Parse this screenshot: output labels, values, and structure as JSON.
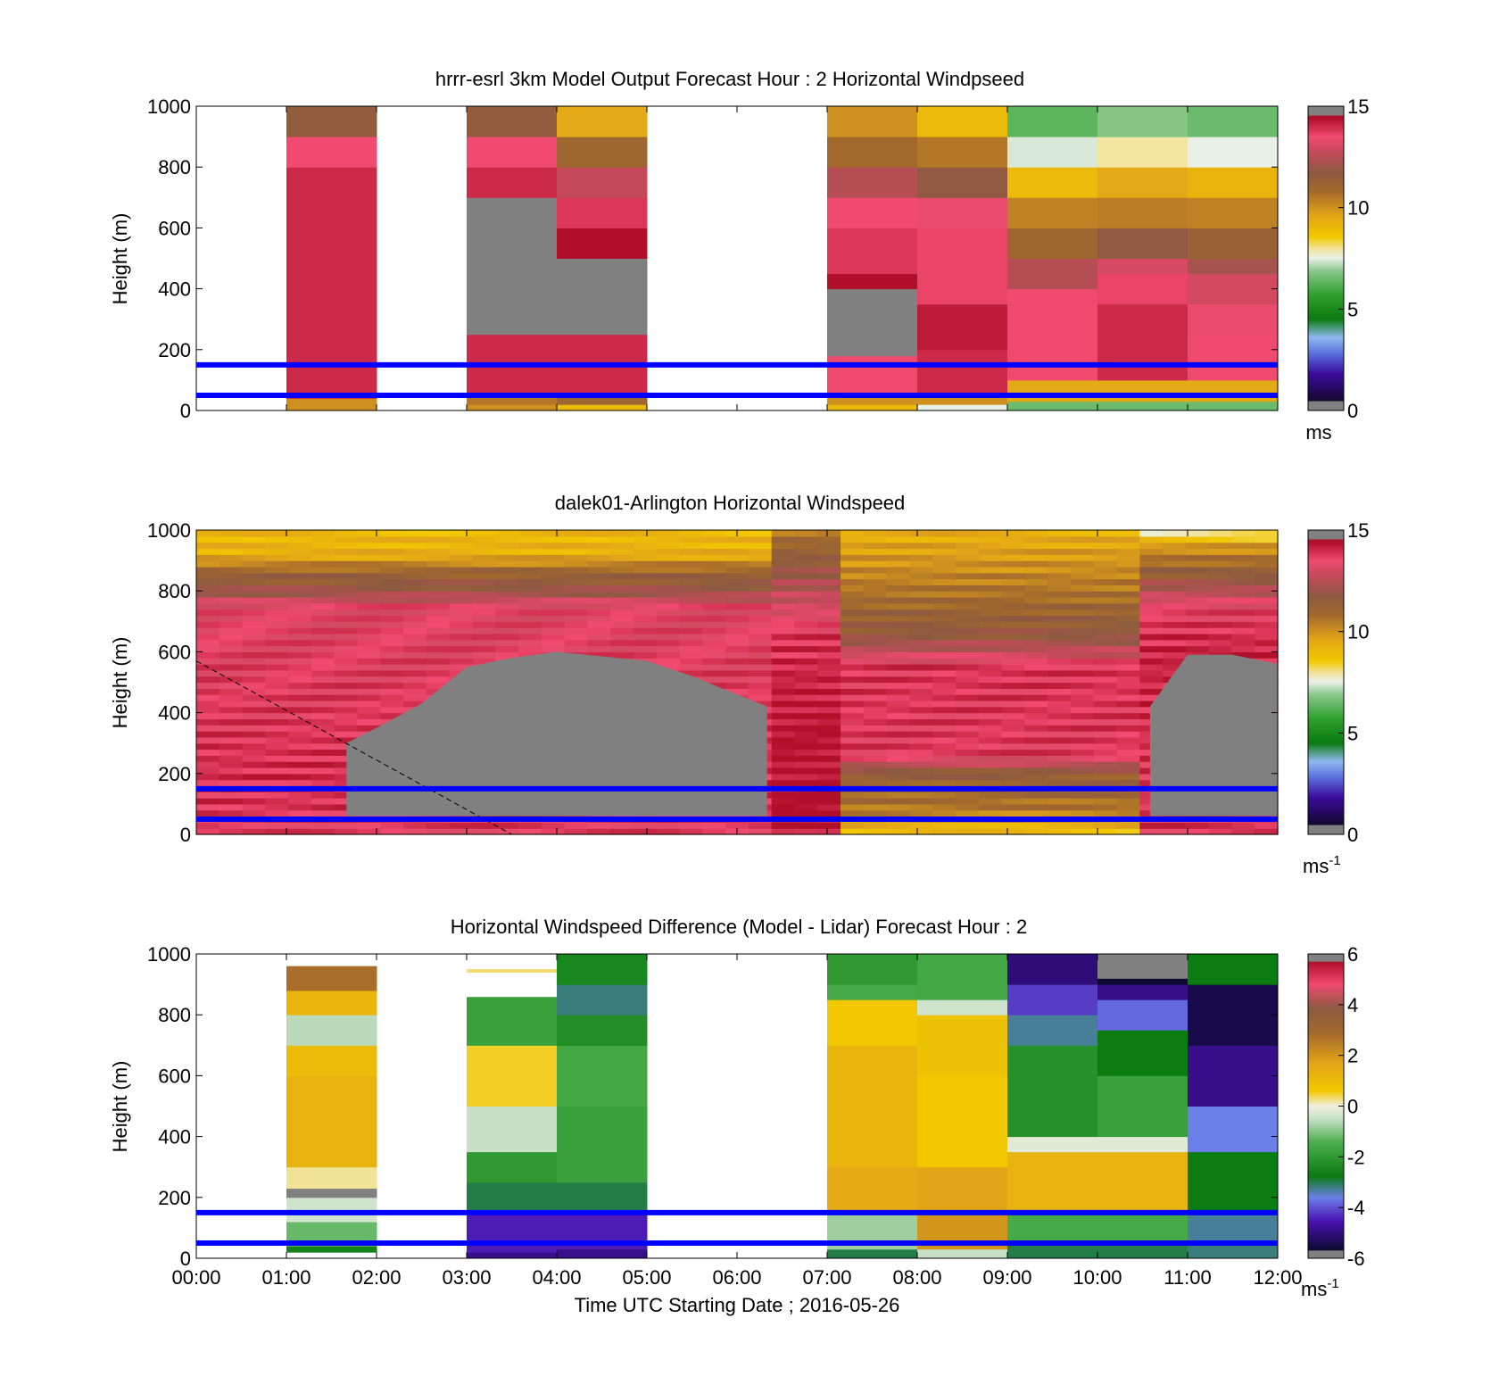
{
  "chart_data": [
    {
      "type": "heatmap",
      "title": "hrrr-esrl 3km Model Output   Forecast Hour : 2 Horizontal Windpseed",
      "ylabel": "Height (m)",
      "xlabel": "",
      "xlim": [
        "00:00",
        "12:00"
      ],
      "ylim": [
        0,
        1000
      ],
      "yticks": [
        "0",
        "200",
        "400",
        "600",
        "800",
        "1000"
      ],
      "colorbar": {
        "min": 0,
        "max": 15,
        "ticks": [
          "0",
          "5",
          "10",
          "15"
        ],
        "unit": "ms"
      },
      "reference_lines_m": [
        50,
        150
      ],
      "line_color": "#0000ff",
      "columns": [
        {
          "start": "01:00",
          "end": "02:00",
          "bands": [
            [
              0,
              20,
              10
            ],
            [
              20,
              40,
              10
            ],
            [
              40,
              180,
              14
            ],
            [
              180,
              700,
              14
            ],
            [
              700,
              800,
              14
            ],
            [
              800,
              900,
              13.5
            ],
            [
              900,
              1000,
              11.5
            ]
          ]
        },
        {
          "start": "03:00",
          "end": "04:00",
          "bands": [
            [
              0,
              20,
              10
            ],
            [
              20,
              60,
              10.5
            ],
            [
              60,
              250,
              14
            ],
            [
              250,
              700,
              0
            ],
            [
              700,
              800,
              14
            ],
            [
              800,
              900,
              13.5
            ],
            [
              900,
              1000,
              11.5
            ]
          ]
        },
        {
          "start": "04:00",
          "end": "05:00",
          "bands": [
            [
              0,
              20,
              9
            ],
            [
              20,
              60,
              11
            ],
            [
              60,
              250,
              14
            ],
            [
              250,
              500,
              0
            ],
            [
              500,
              600,
              14.5
            ],
            [
              600,
              700,
              13.8
            ],
            [
              700,
              800,
              12.8
            ],
            [
              800,
              900,
              11
            ],
            [
              900,
              1000,
              9.5
            ]
          ]
        },
        {
          "start": "07:00",
          "end": "08:00",
          "bands": [
            [
              0,
              20,
              9
            ],
            [
              20,
              60,
              10
            ],
            [
              60,
              180,
              13.5
            ],
            [
              180,
              400,
              0
            ],
            [
              400,
              450,
              14.5
            ],
            [
              450,
              600,
              13.8
            ],
            [
              600,
              700,
              13.5
            ],
            [
              700,
              800,
              12.5
            ],
            [
              800,
              900,
              10.8
            ],
            [
              900,
              1000,
              10
            ]
          ]
        },
        {
          "start": "08:00",
          "end": "09:00",
          "bands": [
            [
              0,
              20,
              7.5
            ],
            [
              20,
              60,
              10
            ],
            [
              60,
              200,
              14
            ],
            [
              200,
              350,
              14.2
            ],
            [
              350,
              600,
              13.6
            ],
            [
              600,
              700,
              13.4
            ],
            [
              700,
              800,
              11.8
            ],
            [
              800,
              900,
              10.5
            ],
            [
              900,
              1000,
              9
            ]
          ]
        },
        {
          "start": "09:00",
          "end": "10:00",
          "bands": [
            [
              0,
              30,
              6.5
            ],
            [
              30,
              100,
              9.5
            ],
            [
              100,
              250,
              13.5
            ],
            [
              250,
              400,
              13.5
            ],
            [
              400,
              500,
              12.5
            ],
            [
              500,
              600,
              11
            ],
            [
              600,
              700,
              10.3
            ],
            [
              700,
              800,
              9
            ],
            [
              800,
              900,
              7.4
            ],
            [
              900,
              1000,
              6.3
            ]
          ]
        },
        {
          "start": "10:00",
          "end": "11:00",
          "bands": [
            [
              0,
              30,
              6.5
            ],
            [
              30,
              100,
              9.5
            ],
            [
              100,
              250,
              14
            ],
            [
              250,
              350,
              14
            ],
            [
              350,
              450,
              13.6
            ],
            [
              450,
              500,
              13.1
            ],
            [
              500,
              600,
              11.8
            ],
            [
              600,
              700,
              10.4
            ],
            [
              700,
              800,
              9.5
            ],
            [
              800,
              900,
              8
            ],
            [
              900,
              1000,
              6.8
            ]
          ]
        },
        {
          "start": "11:00",
          "end": "12:00",
          "bands": [
            [
              0,
              30,
              6.5
            ],
            [
              30,
              100,
              9.5
            ],
            [
              100,
              250,
              13.5
            ],
            [
              250,
              350,
              13.4
            ],
            [
              350,
              450,
              13
            ],
            [
              450,
              500,
              12.2
            ],
            [
              500,
              600,
              11.2
            ],
            [
              600,
              700,
              10.3
            ],
            [
              700,
              800,
              9.2
            ],
            [
              800,
              900,
              7.5
            ],
            [
              900,
              1000,
              6.5
            ]
          ]
        }
      ]
    },
    {
      "type": "heatmap",
      "title": "dalek01-Arlington  Horizontal Windspeed",
      "ylabel": "Height (m)",
      "xlabel": "",
      "xlim": [
        "00:00",
        "12:00"
      ],
      "ylim": [
        0,
        1000
      ],
      "yticks": [
        "0",
        "200",
        "400",
        "600",
        "800",
        "1000"
      ],
      "colorbar": {
        "min": 0,
        "max": 15,
        "ticks": [
          "0",
          "5",
          "10",
          "15"
        ],
        "unit": "ms",
        "unit_exp": "-1"
      },
      "reference_lines_m": [
        50,
        150
      ],
      "line_color": "#0000ff",
      "data_gap_value": 0,
      "gray_region_top_m": [
        [
          "00:00",
          -1
        ],
        [
          "01:30",
          -1
        ],
        [
          "01:40",
          300
        ],
        [
          "02:00",
          350
        ],
        [
          "02:30",
          430
        ],
        [
          "03:00",
          550
        ],
        [
          "03:30",
          580
        ],
        [
          "04:00",
          600
        ],
        [
          "05:00",
          570
        ],
        [
          "05:30",
          520
        ],
        [
          "06:20",
          420
        ],
        [
          "06:25",
          -1
        ],
        [
          "10:30",
          -1
        ],
        [
          "10:35",
          420
        ],
        [
          "11:00",
          590
        ],
        [
          "11:30",
          590
        ],
        [
          "12:00",
          560
        ]
      ],
      "gray_region_bottom_m": 60,
      "dashed_line": [
        [
          "00:00",
          570
        ],
        [
          "03:30",
          0
        ]
      ]
    },
    {
      "type": "heatmap",
      "title": "Horizontal Windspeed Difference (Model - Lidar) Forecast Hour : 2",
      "ylabel": "Height (m)",
      "xlabel": "Time UTC  Starting Date ; 2016-05-26",
      "xlim": [
        "00:00",
        "12:00"
      ],
      "ylim": [
        0,
        1000
      ],
      "xticks": [
        "00:00",
        "01:00",
        "02:00",
        "03:00",
        "04:00",
        "05:00",
        "06:00",
        "07:00",
        "08:00",
        "09:00",
        "10:00",
        "11:00",
        "12:00"
      ],
      "yticks": [
        "0",
        "200",
        "400",
        "600",
        "800",
        "1000"
      ],
      "colorbar": {
        "min": -6,
        "max": 6,
        "ticks": [
          "-6",
          "-4",
          "-2",
          "0",
          "2",
          "4",
          "6"
        ],
        "unit": "ms",
        "unit_exp": "-1"
      },
      "reference_lines_m": [
        50,
        150
      ],
      "line_color": "#0000ff",
      "columns": [
        {
          "start": "01:00",
          "end": "02:00",
          "bands": [
            [
              20,
              40,
              -2.6
            ],
            [
              40,
              120,
              -1.2
            ],
            [
              120,
              200,
              -0.4
            ],
            [
              200,
              230,
              "gap"
            ],
            [
              230,
              300,
              0.2
            ],
            [
              300,
              600,
              1.3
            ],
            [
              600,
              700,
              1
            ],
            [
              700,
              800,
              -0.6
            ],
            [
              800,
              880,
              1.2
            ],
            [
              880,
              960,
              2.8
            ]
          ]
        },
        {
          "start": "03:00",
          "end": "04:00",
          "bands": [
            [
              0,
              20,
              -5
            ],
            [
              20,
              150,
              -4.5
            ],
            [
              150,
              250,
              -3
            ],
            [
              250,
              350,
              -2
            ],
            [
              350,
              500,
              -0.5
            ],
            [
              500,
              700,
              0.5
            ],
            [
              700,
              860,
              -1.8
            ],
            [
              860,
              940,
              "empty"
            ],
            [
              940,
              950,
              0.3
            ]
          ]
        },
        {
          "start": "04:00",
          "end": "05:00",
          "bands": [
            [
              0,
              30,
              -5
            ],
            [
              30,
              150,
              -4.5
            ],
            [
              150,
              250,
              -3
            ],
            [
              250,
              500,
              -1.8
            ],
            [
              500,
              700,
              -1.6
            ],
            [
              700,
              800,
              -2.3
            ],
            [
              800,
              900,
              -3.2
            ],
            [
              900,
              1000,
              -2.5
            ]
          ]
        },
        {
          "start": "07:00",
          "end": "08:00",
          "bands": [
            [
              0,
              30,
              -3
            ],
            [
              30,
              150,
              -0.8
            ],
            [
              150,
              300,
              1.5
            ],
            [
              300,
              700,
              1.2
            ],
            [
              700,
              850,
              0.6
            ],
            [
              850,
              900,
              -1.5
            ],
            [
              900,
              1000,
              -2
            ]
          ]
        },
        {
          "start": "08:00",
          "end": "09:00",
          "bands": [
            [
              0,
              30,
              -0.5
            ],
            [
              30,
              150,
              2
            ],
            [
              150,
              300,
              1.7
            ],
            [
              300,
              600,
              0.6
            ],
            [
              600,
              800,
              0.8
            ],
            [
              800,
              850,
              -0.4
            ],
            [
              850,
              1000,
              -1.6
            ]
          ]
        },
        {
          "start": "09:00",
          "end": "10:00",
          "bands": [
            [
              0,
              50,
              -3
            ],
            [
              50,
              150,
              -1.5
            ],
            [
              150,
              350,
              1.3
            ],
            [
              350,
              400,
              -0.2
            ],
            [
              400,
              700,
              -2.2
            ],
            [
              700,
              800,
              -3.3
            ],
            [
              800,
              900,
              -4.2
            ],
            [
              900,
              1000,
              -5.2
            ]
          ]
        },
        {
          "start": "10:00",
          "end": "11:00",
          "bands": [
            [
              0,
              50,
              -3
            ],
            [
              50,
              150,
              -1.5
            ],
            [
              150,
              350,
              1.3
            ],
            [
              350,
              400,
              -0.2
            ],
            [
              400,
              600,
              -1.8
            ],
            [
              600,
              750,
              -2.8
            ],
            [
              750,
              850,
              -3.8
            ],
            [
              850,
              900,
              -5
            ],
            [
              900,
              920,
              -6.2
            ],
            [
              920,
              1000,
              "gap"
            ]
          ]
        },
        {
          "start": "11:00",
          "end": "12:00",
          "bands": [
            [
              0,
              50,
              -3.2
            ],
            [
              50,
              150,
              -3.3
            ],
            [
              150,
              350,
              -2.8
            ],
            [
              350,
              500,
              -3.6
            ],
            [
              500,
              700,
              -5
            ],
            [
              700,
              900,
              -5.7
            ],
            [
              900,
              1000,
              -2.8
            ]
          ]
        }
      ]
    }
  ]
}
